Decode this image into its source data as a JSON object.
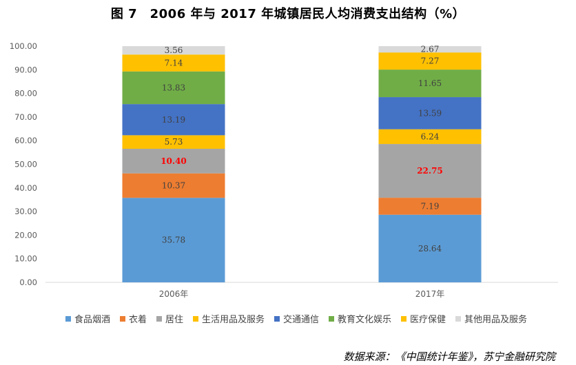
{
  "chart_data": {
    "type": "stacked-bar",
    "title": "图 7　2006 年与 2017 年城镇居民人均消费支出结构（%）",
    "categories": [
      "2006年",
      "2017年"
    ],
    "ylim": [
      0,
      100
    ],
    "yticks": [
      "0.00",
      "10.00",
      "20.00",
      "30.00",
      "40.00",
      "50.00",
      "60.00",
      "70.00",
      "80.00",
      "90.00",
      "100.00"
    ],
    "series": [
      {
        "name": "食品烟酒",
        "color": "#5b9bd5",
        "values": [
          35.78,
          28.64
        ],
        "labels": [
          "35.78",
          "28.64"
        ],
        "highlight": false
      },
      {
        "name": "衣着",
        "color": "#ed7d31",
        "values": [
          10.37,
          7.19
        ],
        "labels": [
          "10.37",
          "7.19"
        ],
        "highlight": false
      },
      {
        "name": "居住",
        "color": "#a5a5a5",
        "values": [
          10.4,
          22.75
        ],
        "labels": [
          "10.40",
          "22.75"
        ],
        "highlight": true
      },
      {
        "name": "生活用品及服务",
        "color": "#ffc000",
        "values": [
          5.73,
          6.24
        ],
        "labels": [
          "5.73",
          "6.24"
        ],
        "highlight": false
      },
      {
        "name": "交通通信",
        "color": "#4472c4",
        "values": [
          13.19,
          13.59
        ],
        "labels": [
          "13.19",
          "13.59"
        ],
        "highlight": false
      },
      {
        "name": "教育文化娱乐",
        "color": "#70ad47",
        "values": [
          13.83,
          11.65
        ],
        "labels": [
          "13.83",
          "11.65"
        ],
        "highlight": false
      },
      {
        "name": "医疗保健",
        "color": "#ffc000",
        "values": [
          7.14,
          7.27
        ],
        "labels": [
          "7.14",
          "7.27"
        ],
        "highlight": false
      },
      {
        "name": "其他用品及服务",
        "color": "#d9d9d9",
        "values": [
          3.56,
          2.67
        ],
        "labels": [
          "3.56",
          "2.67"
        ],
        "highlight": false
      }
    ],
    "highlight_color": "#ff0000",
    "source": "数据来源：《中国统计年鉴》，苏宁金融研究院"
  }
}
